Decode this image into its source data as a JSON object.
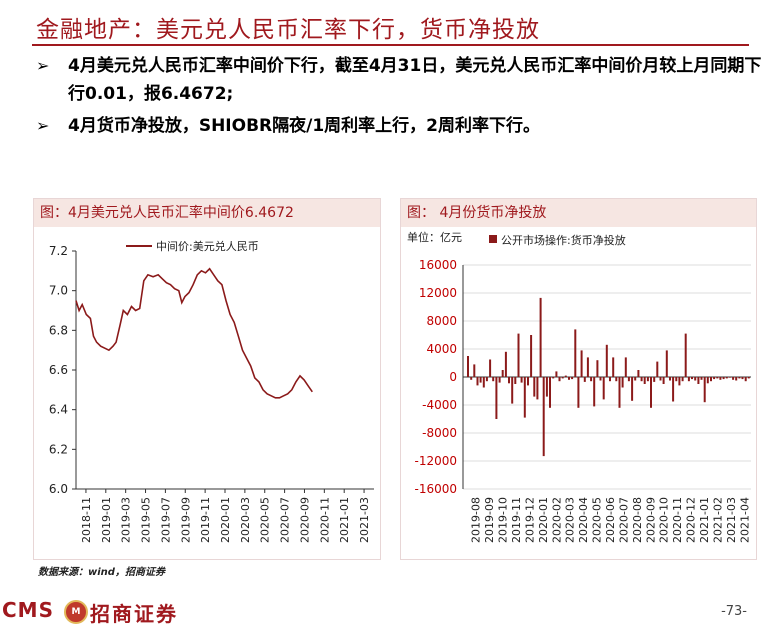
{
  "title": "金融地产：美元兑人民币汇率下行，货币净投放",
  "bullets": [
    "4月美元兑人民币汇率中间价下行，截至4月31日，美元兑人民币汇率中间价月较上月同期下行0.01，报6.4672;",
    "4月货币净投放，SHIOBR隔夜/1周利率上行，2周利率下行。"
  ],
  "bullet_marker": "➢",
  "left_panel": {
    "title": "图：4月美元兑人民币汇率中间价6.4672",
    "chart_data": {
      "type": "line",
      "series": [
        {
          "name": "中间价:美元兑人民币",
          "color": "#8b1a1a"
        }
      ],
      "x_ticks": [
        "2018-11",
        "2019-01",
        "2019-03",
        "2019-05",
        "2019-07",
        "2019-09",
        "2019-11",
        "2020-01",
        "2020-03",
        "2020-05",
        "2020-07",
        "2020-09",
        "2020-11",
        "2021-01",
        "2021-03"
      ],
      "y_ticks": [
        "7.2",
        "7.0",
        "6.8",
        "6.6",
        "6.4",
        "6.2",
        "6.0"
      ],
      "ylim": [
        6.0,
        7.2
      ],
      "x_index_range": [
        0,
        29
      ],
      "points": [
        [
          0,
          6.95
        ],
        [
          0.3,
          6.9
        ],
        [
          0.6,
          6.93
        ],
        [
          1,
          6.88
        ],
        [
          1.4,
          6.86
        ],
        [
          1.7,
          6.77
        ],
        [
          2,
          6.74
        ],
        [
          2.4,
          6.72
        ],
        [
          2.8,
          6.71
        ],
        [
          3.2,
          6.7
        ],
        [
          3.6,
          6.72
        ],
        [
          3.9,
          6.74
        ],
        [
          4.3,
          6.83
        ],
        [
          4.6,
          6.9
        ],
        [
          5,
          6.88
        ],
        [
          5.4,
          6.92
        ],
        [
          5.8,
          6.9
        ],
        [
          6.2,
          6.91
        ],
        [
          6.6,
          7.05
        ],
        [
          7,
          7.08
        ],
        [
          7.5,
          7.07
        ],
        [
          8,
          7.08
        ],
        [
          8.4,
          7.06
        ],
        [
          8.8,
          7.04
        ],
        [
          9.2,
          7.03
        ],
        [
          9.6,
          7.01
        ],
        [
          10,
          7.0
        ],
        [
          10.3,
          6.94
        ],
        [
          10.6,
          6.97
        ],
        [
          11,
          6.99
        ],
        [
          11.4,
          7.03
        ],
        [
          11.8,
          7.08
        ],
        [
          12.2,
          7.1
        ],
        [
          12.6,
          7.09
        ],
        [
          13,
          7.11
        ],
        [
          13.4,
          7.08
        ],
        [
          13.8,
          7.05
        ],
        [
          14.2,
          7.03
        ],
        [
          14.6,
          6.95
        ],
        [
          15,
          6.88
        ],
        [
          15.4,
          6.84
        ],
        [
          15.8,
          6.77
        ],
        [
          16.2,
          6.7
        ],
        [
          16.6,
          6.66
        ],
        [
          17,
          6.62
        ],
        [
          17.4,
          6.56
        ],
        [
          17.8,
          6.54
        ],
        [
          18.2,
          6.5
        ],
        [
          18.6,
          6.48
        ],
        [
          19,
          6.47
        ],
        [
          19.4,
          6.46
        ],
        [
          19.8,
          6.46
        ],
        [
          20.2,
          6.47
        ],
        [
          20.6,
          6.48
        ],
        [
          21,
          6.5
        ],
        [
          21.4,
          6.54
        ],
        [
          21.8,
          6.57
        ],
        [
          22.2,
          6.55
        ],
        [
          22.6,
          6.52
        ],
        [
          23,
          6.49
        ]
      ]
    }
  },
  "right_panel": {
    "title": "图： 4月份货币净投放",
    "unit_label": "单位：亿元",
    "chart_data": {
      "type": "bar",
      "series": [
        {
          "name": "公开市场操作:货币净投放",
          "color": "#8b1a1a"
        }
      ],
      "x_ticks": [
        "2019-08",
        "2019-09",
        "2019-10",
        "2019-11",
        "2019-12",
        "2020-01",
        "2020-02",
        "2020-03",
        "2020-04",
        "2020-05",
        "2020-06",
        "2020-07",
        "2020-08",
        "2020-09",
        "2020-10",
        "2020-11",
        "2020-12",
        "2021-01",
        "2021-02",
        "2021-03",
        "2021-04"
      ],
      "y_ticks": [
        "16000",
        "12000",
        "8000",
        "4000",
        "0",
        "-4000",
        "-8000",
        "-12000",
        "-16000"
      ],
      "ylim": [
        -16000,
        16000
      ],
      "values": [
        3000,
        -400,
        1800,
        -1200,
        -800,
        -1500,
        -600,
        2500,
        -600,
        -6000,
        -800,
        1000,
        3600,
        -900,
        -3800,
        -1000,
        6200,
        -800,
        -5800,
        -1200,
        6000,
        -2800,
        -3200,
        11300,
        -11300,
        -2800,
        -4400,
        -200,
        800,
        -600,
        -200,
        200,
        -400,
        -300,
        6800,
        -4400,
        3800,
        -700,
        2800,
        -600,
        -4200,
        2400,
        -500,
        -3200,
        4600,
        -600,
        2800,
        -600,
        -4400,
        -1500,
        2800,
        -600,
        -3400,
        -500,
        1000,
        -600,
        -1000,
        -600,
        -4400,
        -700,
        2200,
        -500,
        -1000,
        3800,
        -500,
        -3500,
        -600,
        -1200,
        -600,
        6200,
        -600,
        -300,
        -500,
        -1000,
        -400,
        -3600,
        -900,
        -600,
        -300,
        -200,
        -400,
        -300,
        -200,
        -100,
        -400,
        -500,
        -200,
        -300,
        -600,
        -200
      ]
    }
  },
  "source": "数据来源：wind，招商证券",
  "footer": {
    "logo_text": "CMS",
    "logo_cn": "招商证券",
    "page_number": "-73-"
  }
}
